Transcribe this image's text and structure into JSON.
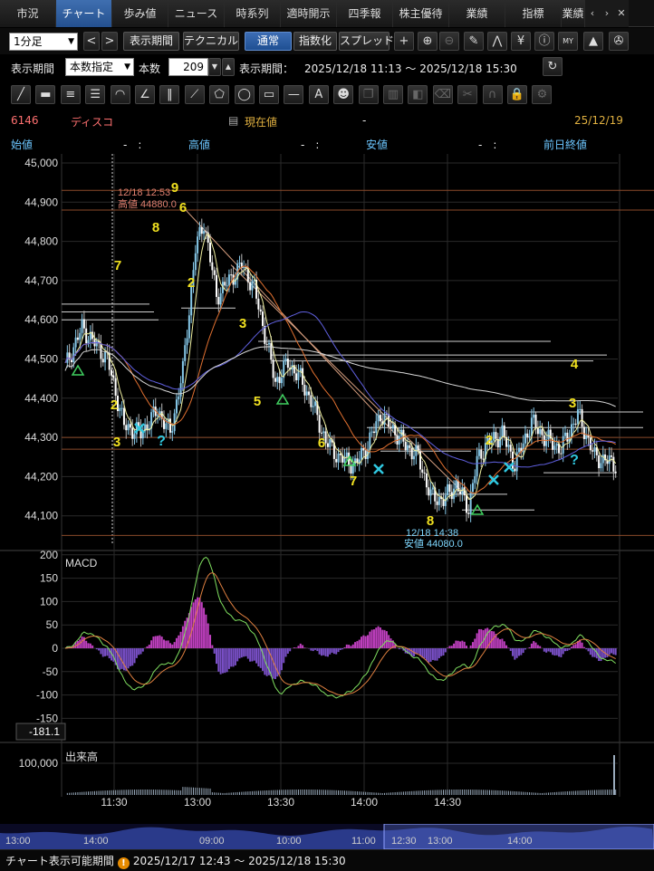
{
  "tabs": [
    "市況",
    "チャート",
    "歩み値",
    "ニュース",
    "時系列",
    "適時開示",
    "四季報",
    "株主優待",
    "業績",
    "指標",
    "業績"
  ],
  "tab_scroll": [
    "‹",
    "›",
    "✕"
  ],
  "toolbar1": {
    "interval": "1分足",
    "prev": "<",
    "next": ">",
    "period_label": "表示期間",
    "technical_label": "テクニカル",
    "mode_normal": "通常",
    "mode_index": "指数化",
    "mode_spread": "スプレッド",
    "icons": [
      "plus-icon",
      "zoom-in-icon",
      "zoom-out-icon",
      "pen-icon",
      "chart-pattern-icon",
      "yen-icon",
      "info-icon",
      "my-icon",
      "area-chart-icon",
      "wrench-icon"
    ]
  },
  "toolbar2": {
    "period_label": "表示期間",
    "period_value": "本数指定",
    "count_label": "本数",
    "count_value": "209",
    "range_label": "表示期間：",
    "range_value": "2025/12/18 11:13 ～ 2025/12/18 15:30",
    "reload": "↻"
  },
  "drawing_tools": [
    "trendline-icon",
    "ruler-icon",
    "horizontal-lines-icon",
    "fibonacci-icon",
    "arc-icon",
    "fan-icon",
    "vertical-lines-icon",
    "gann-fan-icon",
    "pentagon-icon",
    "circle-icon",
    "rectangle-icon",
    "horizontal-line-icon",
    "text-icon",
    "icon-stamp-icon",
    "copy-icon",
    "delete-icon",
    "delete-all-icon",
    "eraser-icon",
    "eraser-all-icon",
    "magnet-icon",
    "lock-icon",
    "settings-icon"
  ],
  "info": {
    "code": "6146",
    "name": "ディスコ",
    "current_label": "現在値",
    "current_value": "-",
    "date": "25/12/19",
    "open_label": "始値",
    "open_value": "-　:",
    "high_label": "高値",
    "high_value": "-　:",
    "low_label": "安値",
    "low_value": "-　:",
    "prev_close_label": "前日終値"
  },
  "annotations": {
    "high_time": "12/18 12:53",
    "high_text": "高値 44880.0",
    "low_time": "12/18 14:38",
    "low_text": "安値 44080.0",
    "macd_label": "MACD",
    "macd_readout": "-181.1",
    "volume_label": "出来高",
    "volume_tick": "100,000"
  },
  "counts": [
    "9",
    "6",
    "8",
    "7",
    "2",
    "3",
    "5",
    "6",
    "7",
    "8",
    "2",
    "3",
    "4",
    "2",
    "3"
  ],
  "colors": {
    "up": "#86c8e8",
    "down": "#ffffff",
    "ma_short": "#e07030",
    "ma_mid": "#6060e0",
    "ma_long": "#d8d8d8",
    "macd": "#80e060",
    "signal": "#e08040",
    "hist": "#c040c0",
    "count": "#f0e020",
    "mark": "#30c8e0"
  },
  "chart_data": {
    "type": "candlestick",
    "price_axis": [
      45000,
      44900,
      44800,
      44700,
      44600,
      44500,
      44400,
      44300,
      44200,
      44100
    ],
    "price_ticks": [
      "45,000",
      "44,900",
      "44,800",
      "44,700",
      "44,600",
      "44,500",
      "44,400",
      "44,300",
      "44,200",
      "44,100"
    ],
    "macd_ticks": [
      "200",
      "150",
      "100",
      "50",
      "0",
      "-50",
      "-100",
      "-150"
    ],
    "time_ticks": [
      "11:30",
      "13:00",
      "13:30",
      "14:00",
      "14:30"
    ],
    "nav_ticks": [
      "13:00",
      "14:00",
      "09:00",
      "10:00",
      "11:00",
      "12:30",
      "13:00",
      "14:00"
    ],
    "high": 44880,
    "low": 44080,
    "ylim": [
      44050,
      45000
    ]
  },
  "footer": {
    "label": "チャート表示可能期間",
    "range": "2025/12/17 12:43 ～ 2025/12/18 15:30"
  }
}
